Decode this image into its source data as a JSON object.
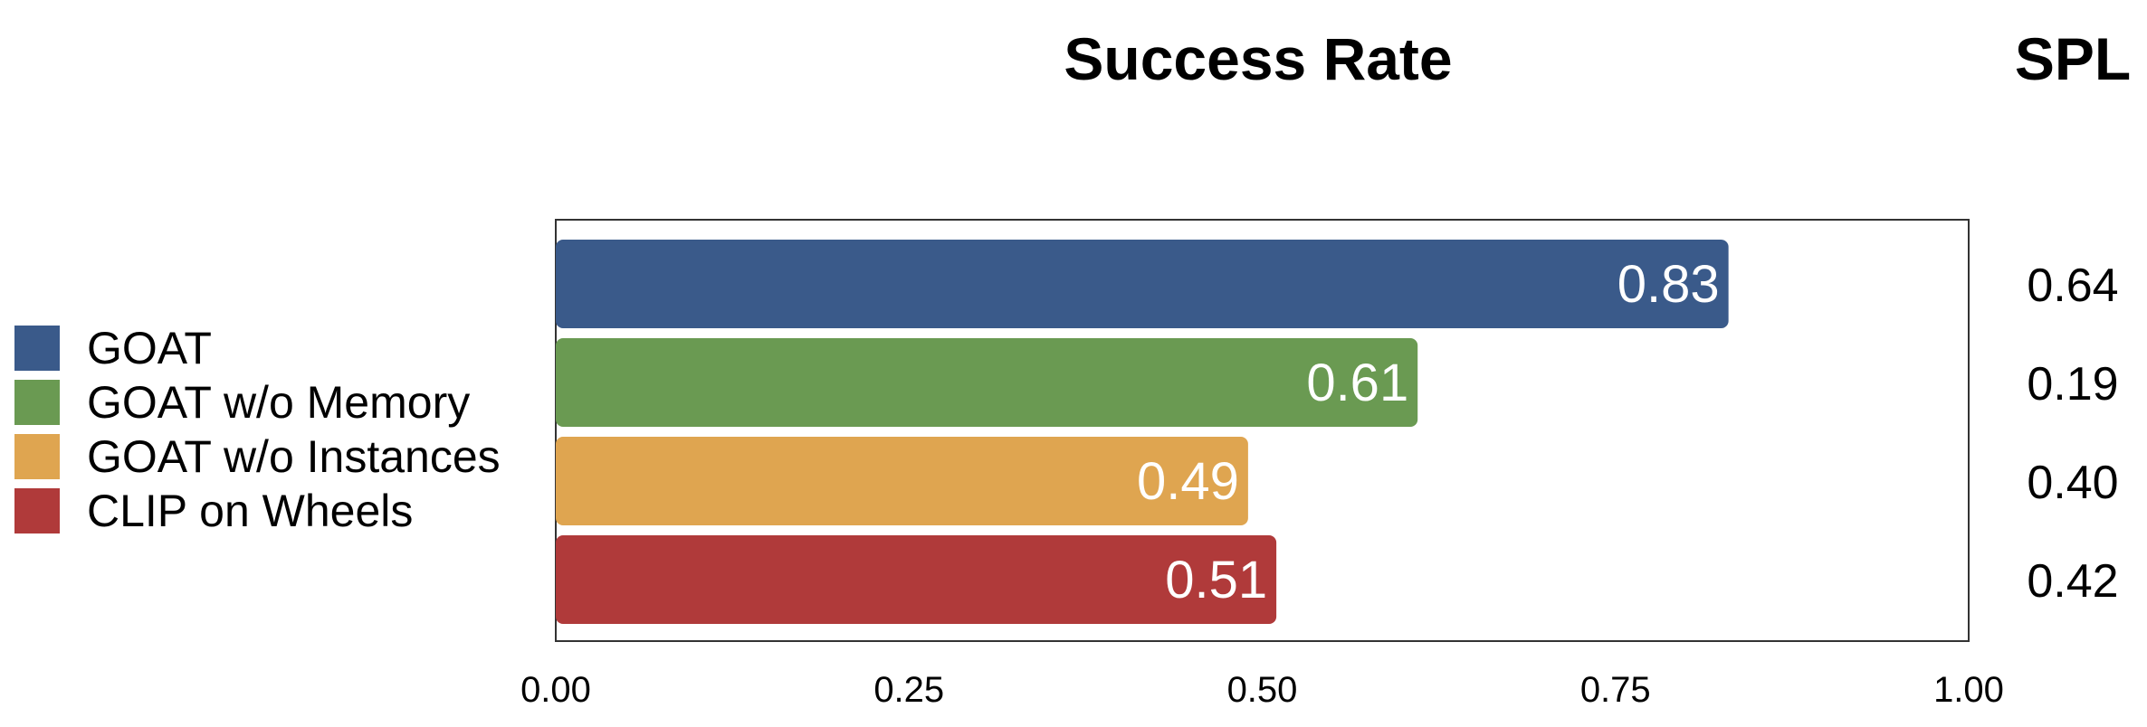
{
  "chart_data": {
    "type": "bar",
    "orientation": "horizontal",
    "title": "Success Rate",
    "side_title": "SPL",
    "categories": [
      "GOAT",
      "GOAT w/o Memory",
      "GOAT w/o Instances",
      "CLIP on Wheels"
    ],
    "values": [
      0.83,
      0.61,
      0.49,
      0.51
    ],
    "value_labels": [
      "0.83",
      "0.61",
      "0.49",
      "0.51"
    ],
    "spl_values": [
      "0.64",
      "0.19",
      "0.40",
      "0.42"
    ],
    "colors": [
      "#3a5a8a",
      "#6a9a52",
      "#dfa550",
      "#b03a3a"
    ],
    "xlim": [
      0,
      1
    ],
    "x_ticks": [
      0,
      0.25,
      0.5,
      0.75,
      1
    ],
    "x_tick_labels": [
      "0.00",
      "0.25",
      "0.50",
      "0.75",
      "1.00"
    ],
    "legend_position": "left",
    "grid": false
  }
}
